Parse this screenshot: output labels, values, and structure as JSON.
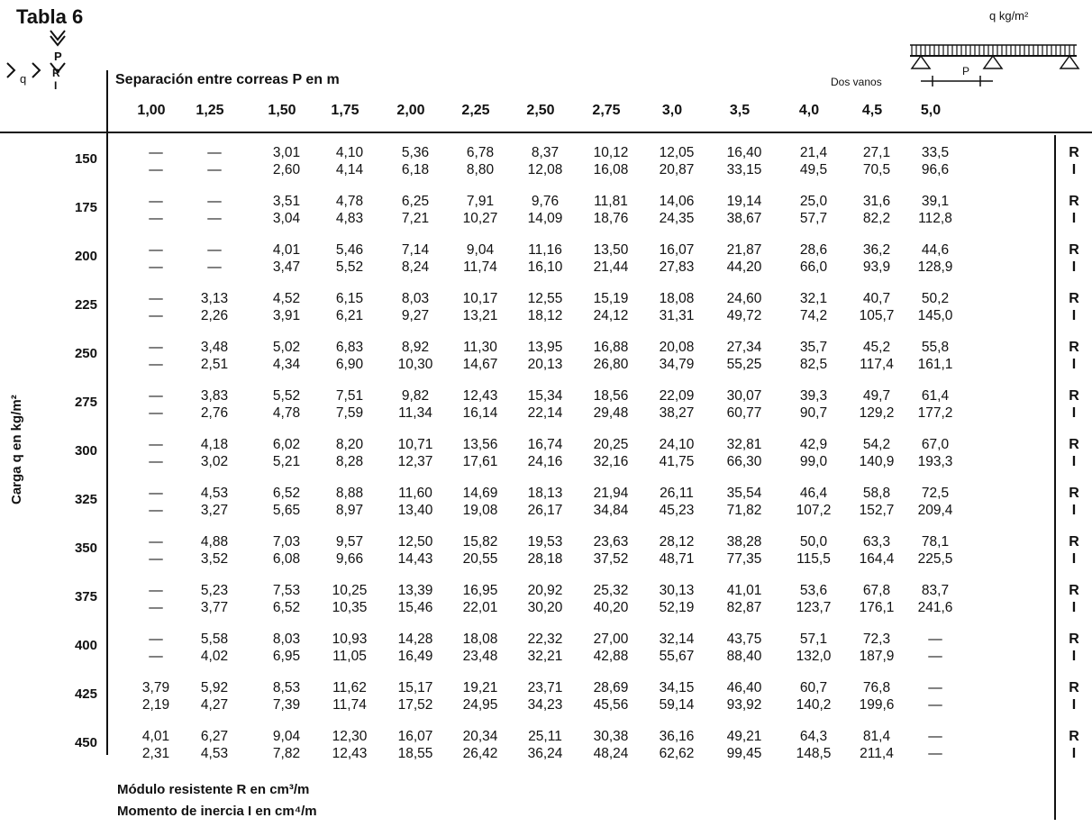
{
  "title": "Tabla 6",
  "header_label": "Separación entre correas P en m",
  "header_right_note": "Dos vanos",
  "load_label": "q kg/m²",
  "corner_label": "q",
  "corner_r": "R",
  "corner_i": "I",
  "corner_p": "P",
  "beam_p_label": "P",
  "axis_label": "Carga q en kg/m²",
  "columns": [
    "1,00",
    "1,25",
    "1,50",
    "1,75",
    "2,00",
    "2,25",
    "2,50",
    "2,75",
    "3,0",
    "3,5",
    "4,0",
    "4,5",
    "5,0"
  ],
  "rows": [
    {
      "q": "150",
      "R": [
        "—",
        "—",
        "3,01",
        "4,10",
        "5,36",
        "6,78",
        "8,37",
        "10,12",
        "12,05",
        "16,40",
        "21,4",
        "27,1",
        "33,5"
      ],
      "I": [
        "—",
        "—",
        "2,60",
        "4,14",
        "6,18",
        "8,80",
        "12,08",
        "16,08",
        "20,87",
        "33,15",
        "49,5",
        "70,5",
        "96,6"
      ]
    },
    {
      "q": "175",
      "R": [
        "—",
        "—",
        "3,51",
        "4,78",
        "6,25",
        "7,91",
        "9,76",
        "11,81",
        "14,06",
        "19,14",
        "25,0",
        "31,6",
        "39,1"
      ],
      "I": [
        "—",
        "—",
        "3,04",
        "4,83",
        "7,21",
        "10,27",
        "14,09",
        "18,76",
        "24,35",
        "38,67",
        "57,7",
        "82,2",
        "112,8"
      ]
    },
    {
      "q": "200",
      "R": [
        "—",
        "—",
        "4,01",
        "5,46",
        "7,14",
        "9,04",
        "11,16",
        "13,50",
        "16,07",
        "21,87",
        "28,6",
        "36,2",
        "44,6"
      ],
      "I": [
        "—",
        "—",
        "3,47",
        "5,52",
        "8,24",
        "11,74",
        "16,10",
        "21,44",
        "27,83",
        "44,20",
        "66,0",
        "93,9",
        "128,9"
      ]
    },
    {
      "q": "225",
      "R": [
        "—",
        "3,13",
        "4,52",
        "6,15",
        "8,03",
        "10,17",
        "12,55",
        "15,19",
        "18,08",
        "24,60",
        "32,1",
        "40,7",
        "50,2"
      ],
      "I": [
        "—",
        "2,26",
        "3,91",
        "6,21",
        "9,27",
        "13,21",
        "18,12",
        "24,12",
        "31,31",
        "49,72",
        "74,2",
        "105,7",
        "145,0"
      ]
    },
    {
      "q": "250",
      "R": [
        "—",
        "3,48",
        "5,02",
        "6,83",
        "8,92",
        "11,30",
        "13,95",
        "16,88",
        "20,08",
        "27,34",
        "35,7",
        "45,2",
        "55,8"
      ],
      "I": [
        "—",
        "2,51",
        "4,34",
        "6,90",
        "10,30",
        "14,67",
        "20,13",
        "26,80",
        "34,79",
        "55,25",
        "82,5",
        "117,4",
        "161,1"
      ]
    },
    {
      "q": "275",
      "R": [
        "—",
        "3,83",
        "5,52",
        "7,51",
        "9,82",
        "12,43",
        "15,34",
        "18,56",
        "22,09",
        "30,07",
        "39,3",
        "49,7",
        "61,4"
      ],
      "I": [
        "—",
        "2,76",
        "4,78",
        "7,59",
        "11,34",
        "16,14",
        "22,14",
        "29,48",
        "38,27",
        "60,77",
        "90,7",
        "129,2",
        "177,2"
      ]
    },
    {
      "q": "300",
      "R": [
        "—",
        "4,18",
        "6,02",
        "8,20",
        "10,71",
        "13,56",
        "16,74",
        "20,25",
        "24,10",
        "32,81",
        "42,9",
        "54,2",
        "67,0"
      ],
      "I": [
        "—",
        "3,02",
        "5,21",
        "8,28",
        "12,37",
        "17,61",
        "24,16",
        "32,16",
        "41,75",
        "66,30",
        "99,0",
        "140,9",
        "193,3"
      ]
    },
    {
      "q": "325",
      "R": [
        "—",
        "4,53",
        "6,52",
        "8,88",
        "11,60",
        "14,69",
        "18,13",
        "21,94",
        "26,11",
        "35,54",
        "46,4",
        "58,8",
        "72,5"
      ],
      "I": [
        "—",
        "3,27",
        "5,65",
        "8,97",
        "13,40",
        "19,08",
        "26,17",
        "34,84",
        "45,23",
        "71,82",
        "107,2",
        "152,7",
        "209,4"
      ]
    },
    {
      "q": "350",
      "R": [
        "—",
        "4,88",
        "7,03",
        "9,57",
        "12,50",
        "15,82",
        "19,53",
        "23,63",
        "28,12",
        "38,28",
        "50,0",
        "63,3",
        "78,1"
      ],
      "I": [
        "—",
        "3,52",
        "6,08",
        "9,66",
        "14,43",
        "20,55",
        "28,18",
        "37,52",
        "48,71",
        "77,35",
        "115,5",
        "164,4",
        "225,5"
      ]
    },
    {
      "q": "375",
      "R": [
        "—",
        "5,23",
        "7,53",
        "10,25",
        "13,39",
        "16,95",
        "20,92",
        "25,32",
        "30,13",
        "41,01",
        "53,6",
        "67,8",
        "83,7"
      ],
      "I": [
        "—",
        "3,77",
        "6,52",
        "10,35",
        "15,46",
        "22,01",
        "30,20",
        "40,20",
        "52,19",
        "82,87",
        "123,7",
        "176,1",
        "241,6"
      ]
    },
    {
      "q": "400",
      "R": [
        "—",
        "5,58",
        "8,03",
        "10,93",
        "14,28",
        "18,08",
        "22,32",
        "27,00",
        "32,14",
        "43,75",
        "57,1",
        "72,3",
        "—"
      ],
      "I": [
        "—",
        "4,02",
        "6,95",
        "11,05",
        "16,49",
        "23,48",
        "32,21",
        "42,88",
        "55,67",
        "88,40",
        "132,0",
        "187,9",
        "—"
      ]
    },
    {
      "q": "425",
      "R": [
        "3,79",
        "5,92",
        "8,53",
        "11,62",
        "15,17",
        "19,21",
        "23,71",
        "28,69",
        "34,15",
        "46,40",
        "60,7",
        "76,8",
        "—"
      ],
      "I": [
        "2,19",
        "4,27",
        "7,39",
        "11,74",
        "17,52",
        "24,95",
        "34,23",
        "45,56",
        "59,14",
        "93,92",
        "140,2",
        "199,6",
        "—"
      ]
    },
    {
      "q": "450",
      "R": [
        "4,01",
        "6,27",
        "9,04",
        "12,30",
        "16,07",
        "20,34",
        "25,11",
        "30,38",
        "36,16",
        "49,21",
        "64,3",
        "81,4",
        "—"
      ],
      "I": [
        "2,31",
        "4,53",
        "7,82",
        "12,43",
        "18,55",
        "26,42",
        "36,24",
        "48,24",
        "62,62",
        "99,45",
        "148,5",
        "211,4",
        "—"
      ]
    }
  ],
  "row_tag_r": "R",
  "row_tag_i": "I",
  "footer": [
    "Módulo resistente R en cm³/m",
    "Momento de inercia I en cm⁴/m"
  ]
}
